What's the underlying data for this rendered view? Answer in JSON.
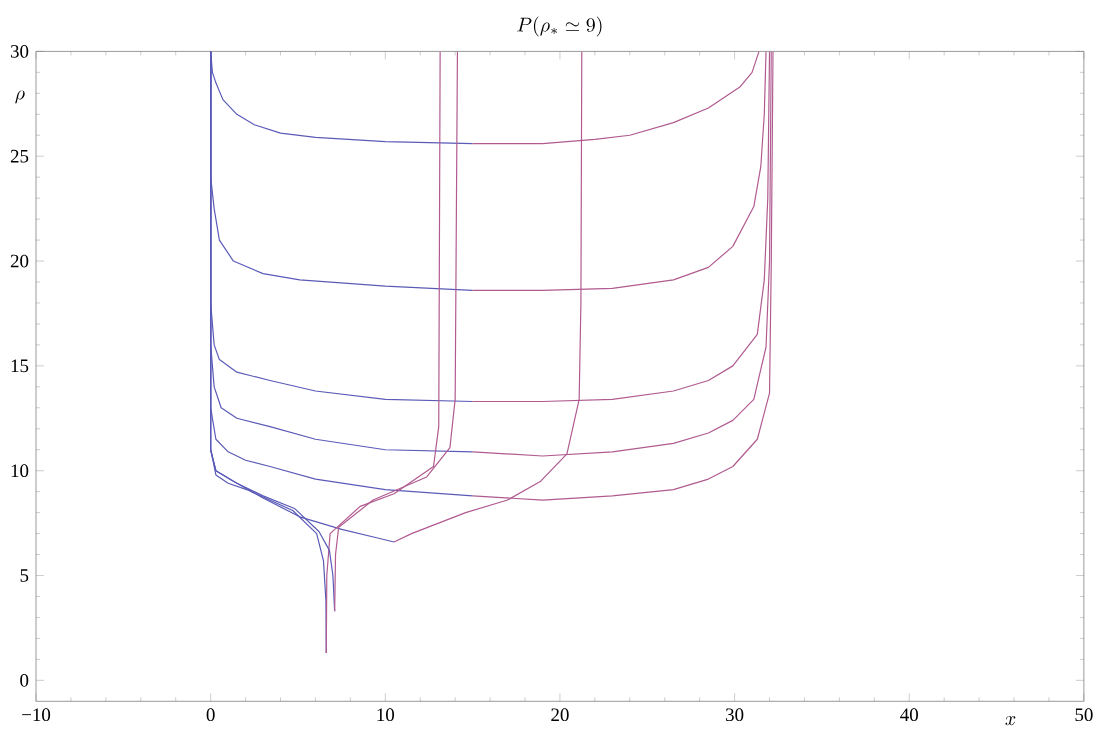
{
  "chart_data": {
    "type": "line",
    "title": "P(\\rho_* \\simeq 9)",
    "xlabel": "x",
    "ylabel": "\\rho",
    "xlim": [
      -10,
      50
    ],
    "ylim": [
      -1,
      30
    ],
    "xticks": [
      {
        "value": -10,
        "label": "−10"
      },
      0,
      10,
      20,
      30,
      40,
      50
    ],
    "yticks": [
      0,
      5,
      10,
      15,
      20,
      25,
      30
    ],
    "grid": false,
    "series": [
      {
        "color": "#5a5ab8",
        "x": [
          0,
          0.1,
          0.3,
          0.7,
          1.5,
          2.5,
          4,
          6,
          10,
          15
        ],
        "values": [
          30,
          29,
          28.5,
          27.7,
          27,
          26.5,
          26.1,
          25.9,
          25.7,
          25.6
        ]
      },
      {
        "color": "#b05a90",
        "x": [
          15,
          19,
          22,
          24,
          26.5,
          28.5,
          30.3,
          31,
          31.4
        ],
        "values": [
          25.6,
          25.6,
          25.8,
          26,
          26.6,
          27.3,
          28.3,
          29,
          30
        ]
      },
      {
        "color": "#5a5ab8",
        "x": [
          0,
          0,
          0.2,
          0.5,
          1.3,
          3,
          5.1,
          10,
          15
        ],
        "values": [
          30,
          24,
          22.5,
          21,
          20,
          19.4,
          19.1,
          18.8,
          18.6
        ]
      },
      {
        "color": "#b05a90",
        "x": [
          15,
          19,
          23,
          26.5,
          28.5,
          29.9,
          31.1,
          31.5,
          31.7,
          31.8
        ],
        "values": [
          18.6,
          18.6,
          18.7,
          19.1,
          19.7,
          20.7,
          22.6,
          24.5,
          27,
          30
        ]
      },
      {
        "color": "#5a5ab8",
        "x": [
          0,
          0,
          0.2,
          0.5,
          1.5,
          3.4,
          6,
          10,
          15
        ],
        "values": [
          30,
          18,
          16,
          15.3,
          14.7,
          14.3,
          13.8,
          13.4,
          13.3
        ]
      },
      {
        "color": "#b05a90",
        "x": [
          15,
          19,
          23,
          26.5,
          28.5,
          29.9,
          31.3,
          31.7,
          31.9,
          32
        ],
        "values": [
          13.3,
          13.3,
          13.4,
          13.8,
          14.3,
          15,
          16.5,
          19.1,
          23,
          30
        ]
      },
      {
        "color": "#5a5ab8",
        "x": [
          0,
          0,
          0.2,
          0.6,
          1.5,
          3.4,
          6,
          10,
          15
        ],
        "values": [
          30,
          16,
          14,
          13,
          12.5,
          12.1,
          11.5,
          11,
          10.9
        ]
      },
      {
        "color": "#b05a90",
        "x": [
          15,
          19,
          23,
          26.5,
          28.5,
          29.9,
          31.1,
          31.8,
          32,
          32.1
        ],
        "values": [
          10.9,
          10.7,
          10.9,
          11.3,
          11.8,
          12.4,
          13.4,
          15.9,
          20,
          30
        ]
      },
      {
        "color": "#5a5ab8",
        "x": [
          0,
          0,
          0.3,
          1,
          2,
          3.4,
          6,
          10,
          15
        ],
        "values": [
          30,
          13,
          11.5,
          10.9,
          10.5,
          10.2,
          9.6,
          9.1,
          8.8
        ]
      },
      {
        "color": "#b05a90",
        "x": [
          15,
          19,
          23,
          26.5,
          28.5,
          29.9,
          31.3,
          32,
          32.1,
          32.2
        ],
        "values": [
          8.8,
          8.6,
          8.8,
          9.1,
          9.6,
          10.2,
          11.5,
          13.7,
          20,
          30
        ]
      },
      {
        "color": "#5a5ab8",
        "x": [
          0,
          0,
          0.3,
          1.3,
          3,
          5.1,
          7.5,
          9.5,
          10.5
        ],
        "values": [
          30,
          11,
          10,
          9.5,
          8.7,
          7.8,
          7.2,
          6.8,
          6.6
        ]
      },
      {
        "color": "#b05a90",
        "x": [
          10.5,
          11.5,
          14.6,
          17,
          18.9,
          20.4,
          21.1,
          21.2,
          21.25
        ],
        "values": [
          6.6,
          7,
          8,
          8.6,
          9.5,
          10.8,
          13.4,
          18,
          30
        ]
      },
      {
        "color": "#5a5ab8",
        "x": [
          0,
          0,
          0.3,
          1,
          2.06,
          4.7,
          6.07,
          6.46,
          6.6,
          6.62
        ],
        "values": [
          30,
          11,
          9.8,
          9.4,
          9.1,
          8.1,
          7,
          5.7,
          3.8,
          1.3
        ]
      },
      {
        "color": "#b05a90",
        "x": [
          6.62,
          6.65,
          6.84,
          8.56,
          10.5,
          12.76,
          13.06,
          13.14
        ],
        "values": [
          1.3,
          5,
          7,
          8.3,
          8.9,
          10.2,
          12.1,
          30
        ]
      },
      {
        "color": "#5a5ab8",
        "x": [
          0,
          0,
          0.3,
          1.5,
          3,
          4.8,
          6.2,
          6.8,
          7,
          7.1
        ],
        "values": [
          30,
          11,
          10,
          9.4,
          8.8,
          8.2,
          7.1,
          6.2,
          5,
          3.3
        ]
      },
      {
        "color": "#b05a90",
        "x": [
          7.1,
          7.15,
          7.33,
          9.3,
          12.37,
          13.7,
          14,
          14.13
        ],
        "values": [
          3.3,
          6,
          7.3,
          8.6,
          9.7,
          11.1,
          13.4,
          30
        ]
      }
    ]
  }
}
